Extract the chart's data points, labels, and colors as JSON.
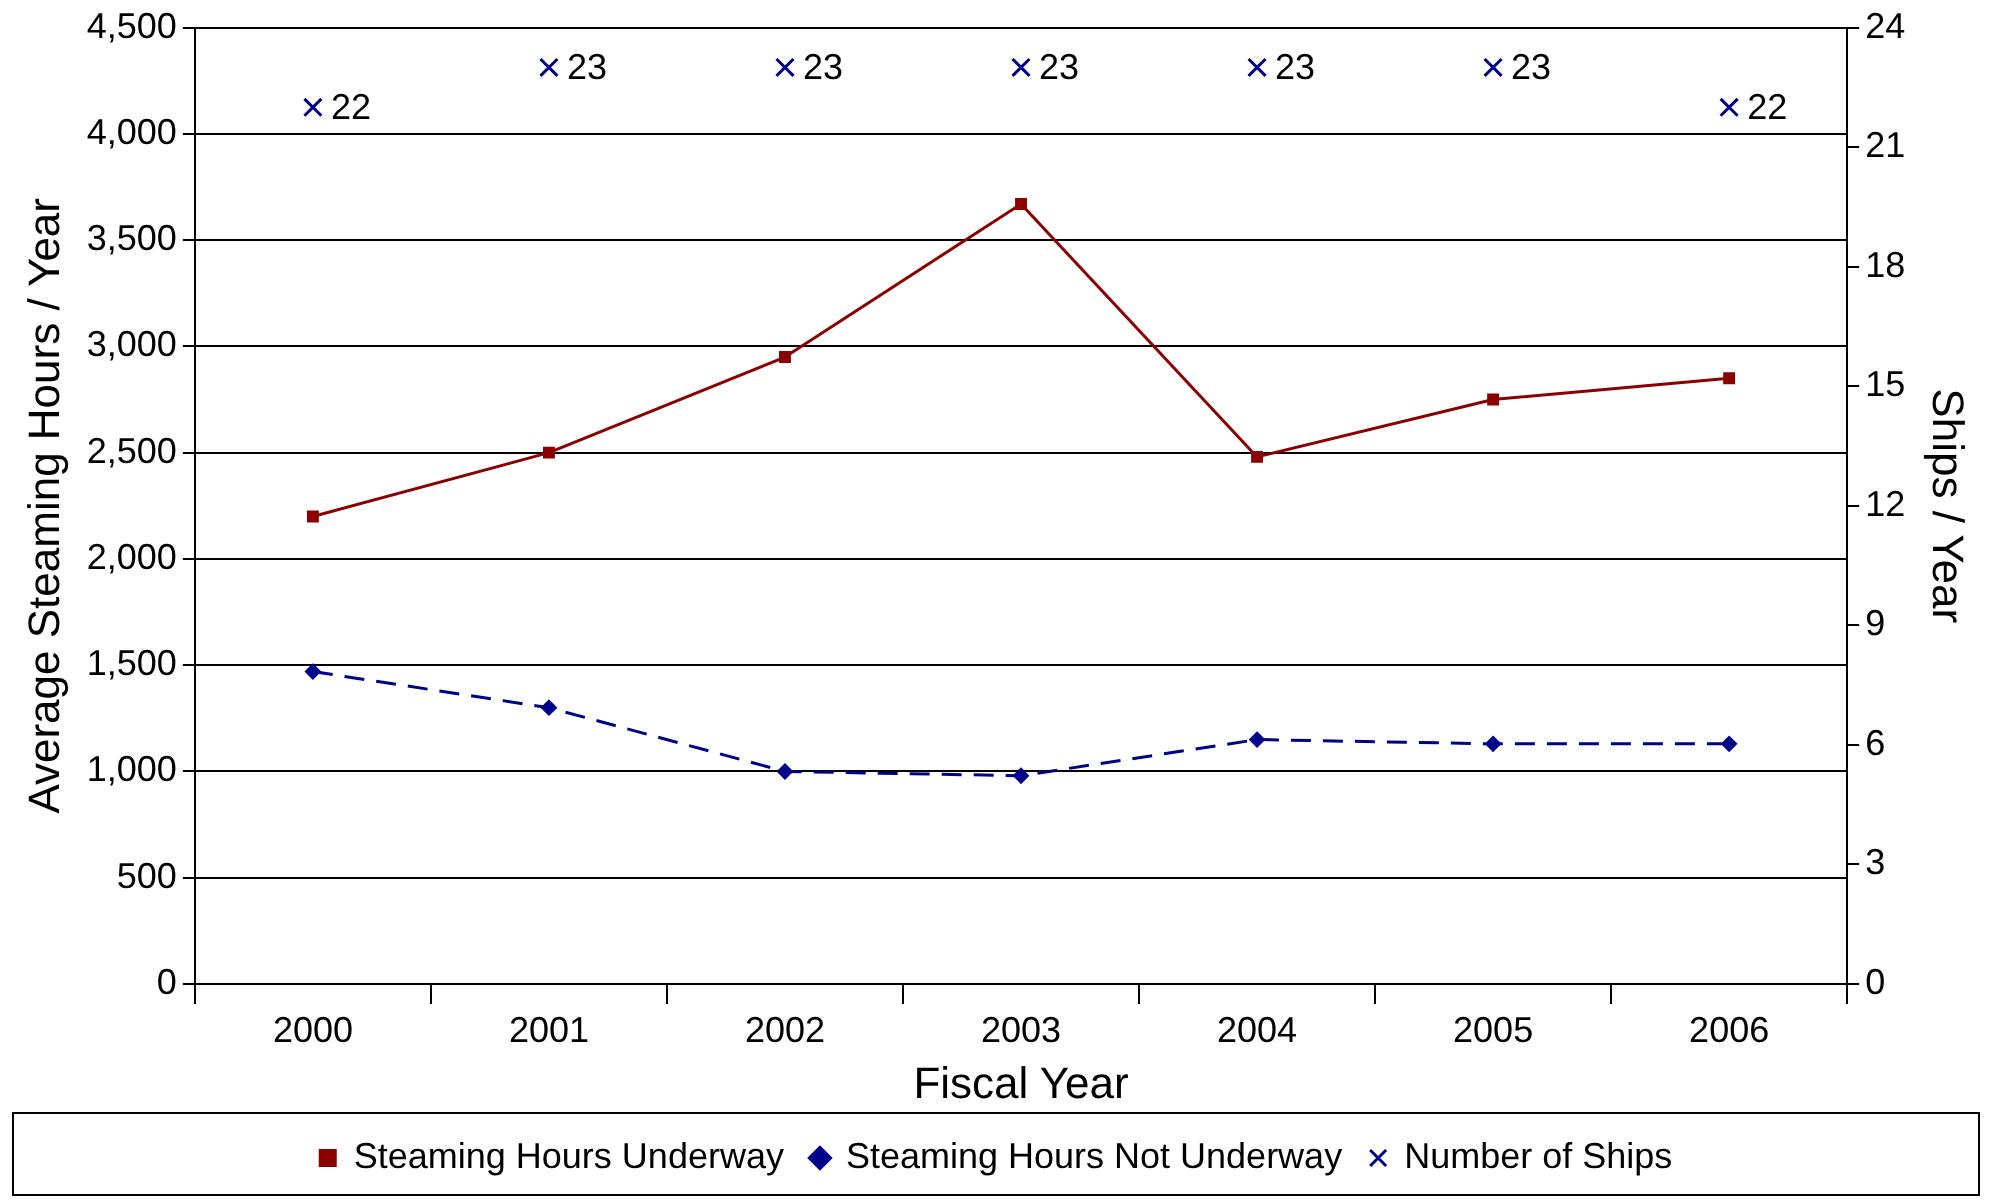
{
  "chart_data": {
    "type": "line",
    "xlabel": "Fiscal Year",
    "ylabel": "Average Steaming Hours / Year",
    "y2label": "Ships / Year",
    "categories": [
      "2000",
      "2001",
      "2002",
      "2003",
      "2004",
      "2005",
      "2006"
    ],
    "series": [
      {
        "name": "Steaming Hours Underway",
        "color": "#8b0000",
        "marker": "square",
        "line_style": "solid",
        "values": [
          2200,
          2500,
          2950,
          3670,
          2480,
          2750,
          2850
        ]
      },
      {
        "name": "Steaming Hours Not Underway",
        "color": "#00008b",
        "marker": "diamond",
        "line_style": "dashed",
        "values": [
          1470,
          1300,
          1000,
          980,
          1150,
          1130,
          1130
        ]
      },
      {
        "name": "Number of Ships",
        "type": "scatter",
        "axis": "y2",
        "color": "#00008b",
        "marker": "cross",
        "values": [
          22,
          23,
          23,
          23,
          23,
          23,
          22
        ],
        "value_labels": [
          "22",
          "23",
          "23",
          "23",
          "23",
          "23",
          "22"
        ]
      }
    ],
    "ylim": [
      0,
      4500
    ],
    "yticks": [
      0,
      {
        "value": 500,
        "label": "500"
      },
      {
        "value": 1000,
        "label": "1,000"
      },
      {
        "value": 1500,
        "label": "1,500"
      },
      {
        "value": 2000,
        "label": "2,000"
      },
      {
        "value": 2500,
        "label": "2,500"
      },
      {
        "value": 3000,
        "label": "3,000"
      },
      {
        "value": 3500,
        "label": "3,500"
      },
      {
        "value": 4000,
        "label": "4,000"
      },
      {
        "value": 4500,
        "label": "4,500"
      }
    ],
    "y2lim": [
      0,
      24
    ],
    "y2ticks": [
      0,
      3,
      6,
      9,
      12,
      15,
      18,
      21,
      24
    ],
    "grid": "y",
    "legend": "bottom"
  }
}
